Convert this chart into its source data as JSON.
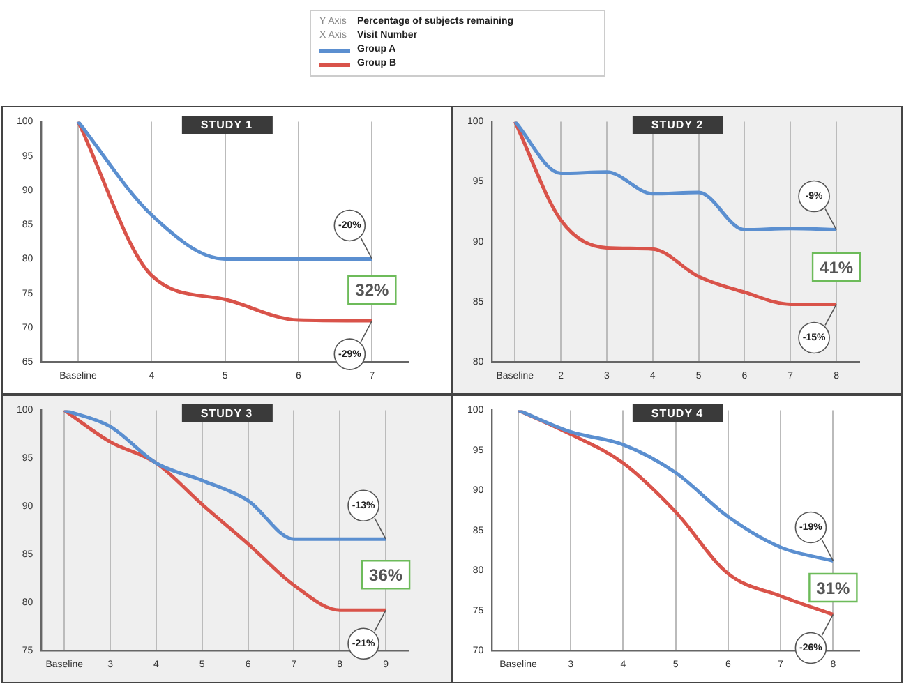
{
  "chart_data": [
    {
      "type": "line",
      "title": "STUDY 1",
      "legend": "top",
      "grid": "x",
      "marker": "none",
      "categories": [
        "Baseline",
        "4",
        "5",
        "6",
        "7"
      ],
      "ylim": [
        65,
        100
      ],
      "yticks": [
        65,
        70,
        75,
        80,
        85,
        90,
        95,
        100
      ],
      "series": [
        {
          "name": "Group A",
          "color": "#5b8fd0",
          "values": [
            100,
            86.4,
            80,
            80,
            80
          ]
        },
        {
          "name": "Group B",
          "color": "#d9534a",
          "values": [
            100,
            77.6,
            74.1,
            71.1,
            71
          ]
        }
      ],
      "annotations": [
        "Y Axis",
        "Percentage of subjects remaining",
        "X Axis",
        "Visit Number",
        {
          "text": "-20%",
          "x": "7",
          "y": 80
        },
        {
          "text": "-29%",
          "x": "7",
          "y": 71
        },
        "32%"
      ]
    },
    {
      "type": "line",
      "title": "STUDY 2",
      "grid": "x",
      "marker": "none",
      "categories": [
        "Baseline",
        "2",
        "3",
        "4",
        "5",
        "6",
        "7",
        "8"
      ],
      "ylim": [
        80,
        100
      ],
      "yticks": [
        80,
        85,
        90,
        95,
        100
      ],
      "series": [
        {
          "color": "#5b8fd0",
          "values": [
            100,
            95.7,
            95.8,
            94,
            94.1,
            91,
            91.1,
            91
          ]
        },
        {
          "color": "#d9534a",
          "values": [
            100,
            91.8,
            89.5,
            89.4,
            87.1,
            85.8,
            84.8,
            84.8
          ]
        }
      ],
      "annotations": [
        {
          "text": "-9%",
          "x": "8",
          "y": 91
        },
        {
          "text": "-15%",
          "x": "8",
          "y": 84.8
        },
        "41%"
      ]
    },
    {
      "type": "line",
      "title": "STUDY 3",
      "grid": "x",
      "marker": "none",
      "categories": [
        "Baseline",
        "3",
        "4",
        "5",
        "6",
        "7",
        "8",
        "9"
      ],
      "ylim": [
        75,
        100
      ],
      "yticks": [
        75,
        80,
        85,
        90,
        95,
        100
      ],
      "series": [
        {
          "color": "#5b8fd0",
          "values": [
            100,
            98.3,
            94.5,
            92.7,
            90.6,
            86.6,
            86.6,
            86.6
          ]
        },
        {
          "color": "#d9534a",
          "values": [
            100,
            96.7,
            94.5,
            90.2,
            86.1,
            81.8,
            79.2,
            79.2
          ]
        }
      ],
      "annotations": [
        {
          "text": "-13%",
          "x": "9",
          "y": 86.6
        },
        {
          "text": "-21%",
          "x": "9",
          "y": 79.2
        },
        "36%"
      ]
    },
    {
      "type": "line",
      "title": "STUDY 4",
      "grid": "x",
      "marker": "none",
      "categories": [
        "Baseline",
        "3",
        "4",
        "5",
        "6",
        "7",
        "8"
      ],
      "ylim": [
        70,
        100
      ],
      "yticks": [
        70,
        75,
        80,
        85,
        90,
        95,
        100
      ],
      "series": [
        {
          "color": "#5b8fd0",
          "values": [
            100,
            97.3,
            95.7,
            92.2,
            86.7,
            82.9,
            81.2
          ]
        },
        {
          "color": "#d9534a",
          "values": [
            100,
            97,
            93.4,
            87.3,
            79.6,
            76.8,
            74.5
          ]
        }
      ],
      "annotations": [
        {
          "text": "-19%",
          "x": "8",
          "y": 81.2
        },
        {
          "text": "-26%",
          "x": "8",
          "y": 74.5
        },
        "31%"
      ]
    }
  ]
}
